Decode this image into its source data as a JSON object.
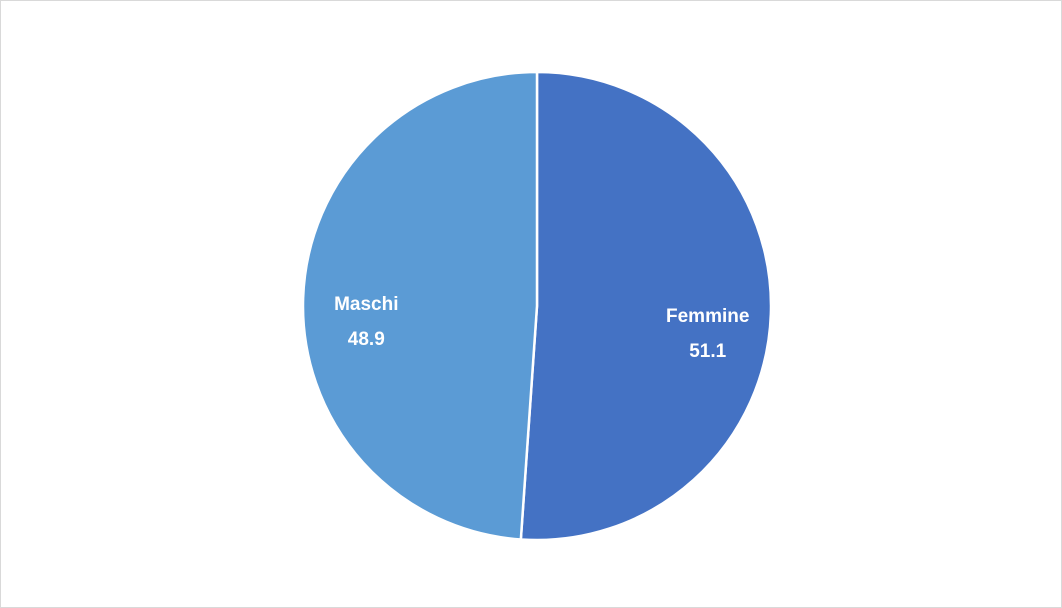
{
  "chart_data": {
    "type": "pie",
    "categories": [
      "Femmine",
      "Maschi"
    ],
    "values": [
      51.1,
      48.9
    ],
    "colors": [
      "#4472c4",
      "#5b9bd5"
    ]
  }
}
